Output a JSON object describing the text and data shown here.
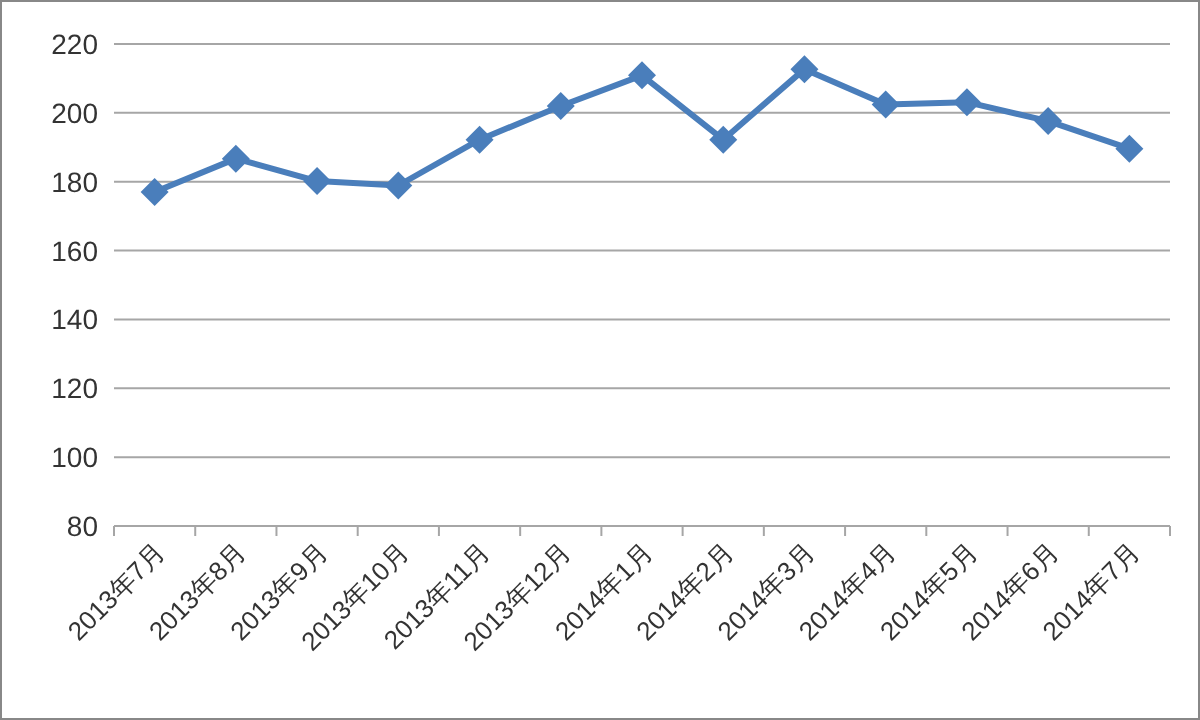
{
  "chart_data": {
    "type": "line",
    "categories": [
      "2013年7月",
      "2013年8月",
      "2013年9月",
      "2013年10月",
      "2013年11月",
      "2013年12月",
      "2014年1月",
      "2014年2月",
      "2014年3月",
      "2014年4月",
      "2014年5月",
      "2014年6月",
      "2014年7月"
    ],
    "series": [
      {
        "color": "#4a7ebb",
        "values": [
          177,
          186.7,
          180.2,
          178.9,
          192.2,
          202,
          210.9,
          192.2,
          212.7,
          202.4,
          203.1,
          197.6,
          189.6
        ]
      }
    ],
    "ylim": [
      80,
      220
    ],
    "yticks": [
      80,
      100,
      120,
      140,
      160,
      180,
      200,
      220
    ],
    "grid": "y",
    "marker": "diamond",
    "line_style": "solid"
  }
}
